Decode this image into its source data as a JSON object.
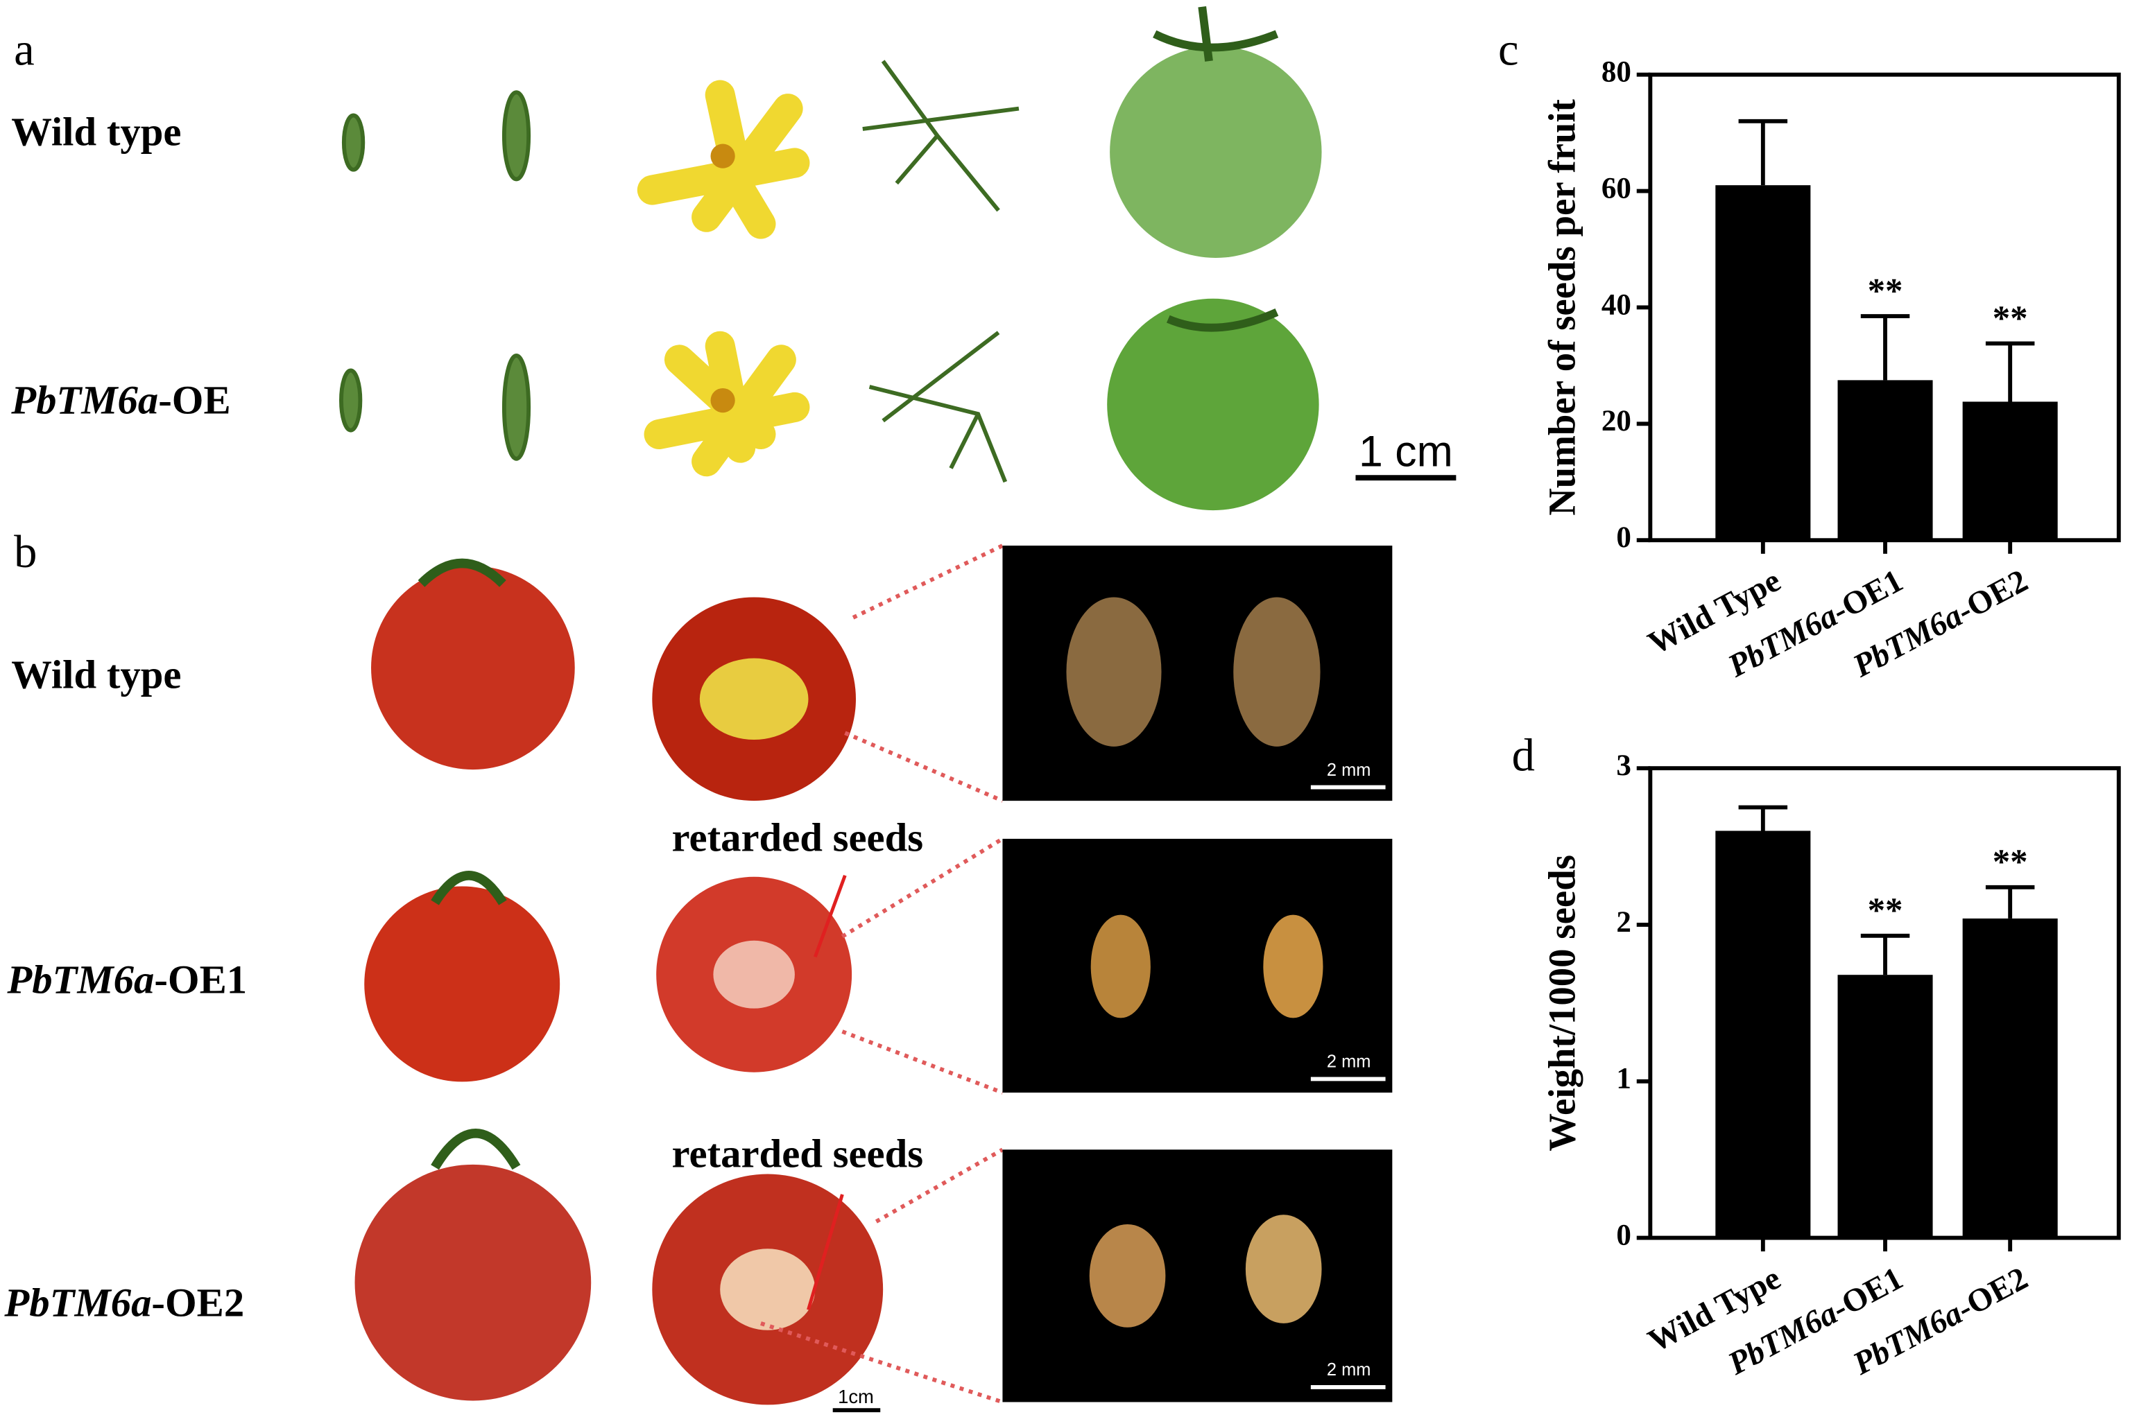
{
  "panels": {
    "a": {
      "label": "a",
      "rows": [
        "Wild type",
        "PbTM6a-OE"
      ],
      "scale_bar": "1 cm"
    },
    "b": {
      "label": "b",
      "rows": [
        "Wild type",
        "PbTM6a-OE1",
        "PbTM6a-OE2"
      ],
      "annotations": [
        "retarded seeds",
        "retarded seeds"
      ],
      "seed_scale_bars": [
        "2 mm",
        "2 mm",
        "2 mm"
      ],
      "scale_bar": "1cm"
    }
  },
  "chart_data": [
    {
      "type": "bar",
      "panel_label": "c",
      "ylabel": "Number of seeds per fruit",
      "categories": [
        "Wild Type",
        "PbTM6a-OE1",
        "PbTM6a-OE2"
      ],
      "values": [
        61,
        27.5,
        23.8
      ],
      "errors": [
        11,
        11,
        10
      ],
      "significance": [
        null,
        "**",
        "**"
      ],
      "color": "#000000",
      "ylim": [
        0,
        80
      ],
      "yticks": [
        0,
        20,
        40,
        60,
        80
      ]
    },
    {
      "type": "bar",
      "panel_label": "d",
      "ylabel": "Weight/1000 seeds",
      "categories": [
        "Wild Type",
        "PbTM6a-OE1",
        "PbTM6a-OE2"
      ],
      "values": [
        2.6,
        1.68,
        2.04
      ],
      "errors": [
        0.15,
        0.25,
        0.2
      ],
      "significance": [
        null,
        "**",
        "**"
      ],
      "color": "#000000",
      "ylim": [
        0,
        3
      ],
      "yticks": [
        0,
        1,
        2,
        3
      ]
    }
  ]
}
